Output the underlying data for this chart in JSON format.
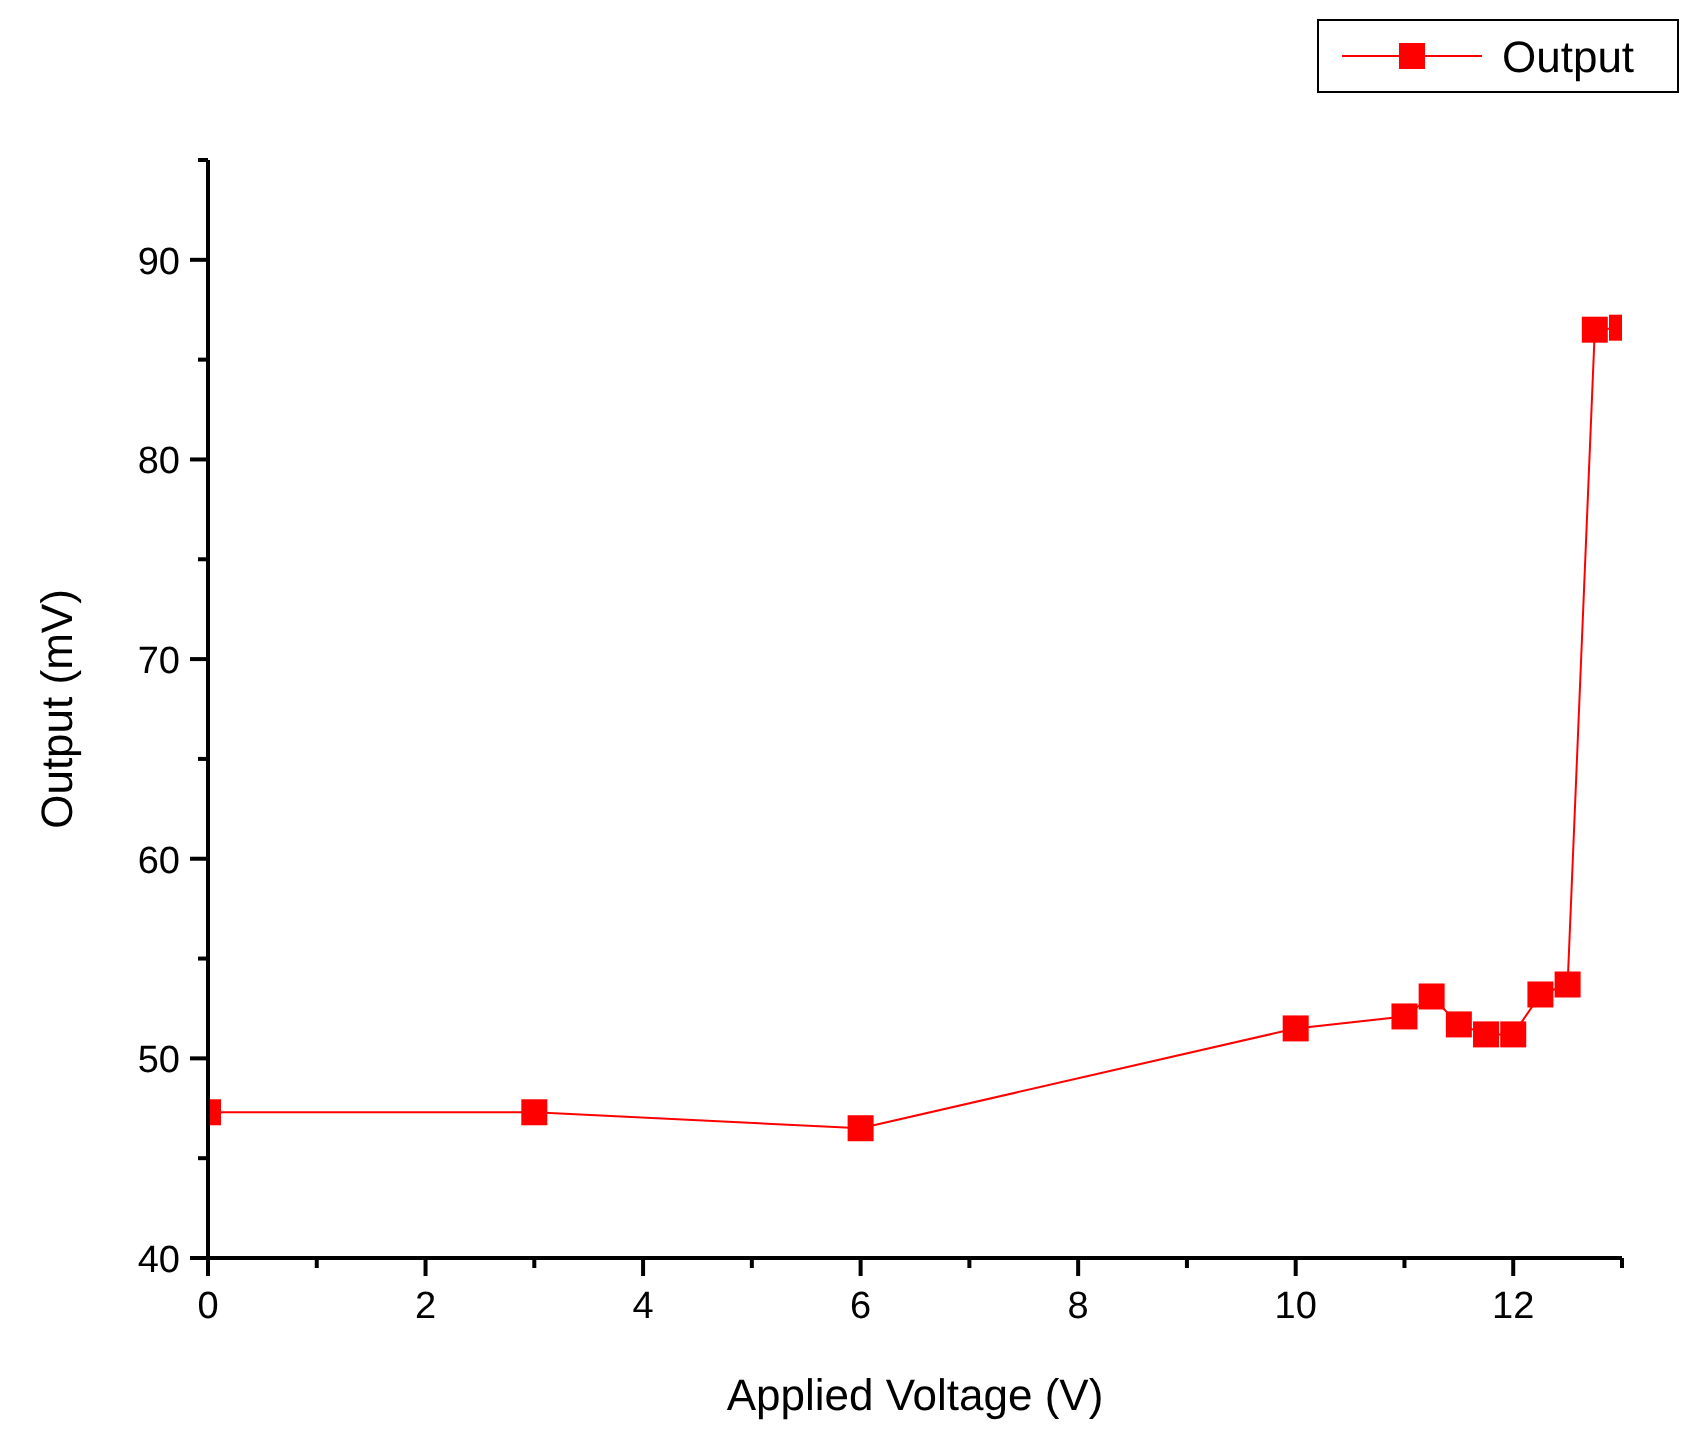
{
  "chart_data": {
    "type": "line",
    "xlabel": "Applied Voltage (V)",
    "ylabel": "Output (mV)",
    "x": [
      0,
      3,
      6,
      10,
      11,
      11.25,
      11.5,
      11.75,
      12,
      12.25,
      12.5,
      12.75,
      13
    ],
    "series": [
      {
        "name": "Output",
        "color": "#ff0000",
        "values": [
          47.3,
          47.3,
          46.5,
          51.5,
          52.1,
          53.1,
          51.7,
          51.2,
          51.2,
          53.2,
          53.7,
          86.5,
          86.6
        ]
      }
    ],
    "xlim": [
      0,
      13
    ],
    "ylim": [
      40,
      95
    ],
    "xticks": [
      0,
      {
        "value": 1,
        "label": null
      },
      2,
      {
        "value": 3,
        "label": null
      },
      4,
      {
        "value": 5,
        "label": null
      },
      6,
      {
        "value": 7,
        "label": null
      },
      8,
      {
        "value": 9,
        "label": null
      },
      10,
      {
        "value": 11,
        "label": null
      },
      12,
      {
        "value": 13,
        "label": null
      }
    ],
    "yticks": [
      40,
      {
        "value": 45,
        "label": null
      },
      50,
      {
        "value": 55,
        "label": null
      },
      60,
      {
        "value": 65,
        "label": null
      },
      70,
      {
        "value": 75,
        "label": null
      },
      80,
      {
        "value": 85,
        "label": null
      },
      90,
      {
        "value": 95,
        "label": null
      }
    ],
    "marker": "square",
    "line_style": "solid",
    "legend": "top right",
    "grid": false
  }
}
